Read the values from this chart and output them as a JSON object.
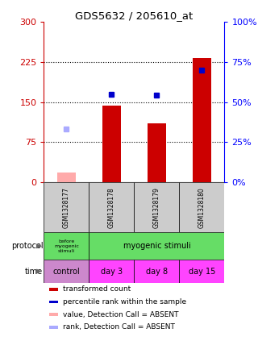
{
  "title": "GDS5632 / 205610_at",
  "samples": [
    "GSM1328177",
    "GSM1328178",
    "GSM1328179",
    "GSM1328180"
  ],
  "red_bars": [
    18,
    143,
    110,
    232
  ],
  "blue_dots_left": [
    null,
    165,
    163,
    210
  ],
  "red_absent": [
    18,
    null,
    null,
    null
  ],
  "blue_absent_left": [
    100,
    null,
    null,
    null
  ],
  "ylim_left": [
    0,
    300
  ],
  "ylim_right": [
    0,
    100
  ],
  "yticks_left": [
    0,
    75,
    150,
    225,
    300
  ],
  "yticks_right": [
    0,
    25,
    50,
    75,
    100
  ],
  "ytick_labels_left": [
    "0",
    "75",
    "150",
    "225",
    "300"
  ],
  "ytick_labels_right": [
    "0%",
    "25%",
    "50%",
    "75%",
    "100%"
  ],
  "dotted_lines": [
    75,
    150,
    225
  ],
  "time_labels": [
    "control",
    "day 3",
    "day 8",
    "day 15"
  ],
  "time_color_control": "#CC88CC",
  "time_color_days": "#FF44FF",
  "sample_bg_color": "#CCCCCC",
  "bar_color": "#CC0000",
  "dot_color": "#0000CC",
  "absent_bar_color": "#FFAAAA",
  "absent_dot_color": "#AAAAFF",
  "proto_green": "#66DD66",
  "legend_items": [
    {
      "color": "#CC0000",
      "label": "transformed count"
    },
    {
      "color": "#0000CC",
      "label": "percentile rank within the sample"
    },
    {
      "color": "#FFAAAA",
      "label": "value, Detection Call = ABSENT"
    },
    {
      "color": "#AAAAFF",
      "label": "rank, Detection Call = ABSENT"
    }
  ]
}
